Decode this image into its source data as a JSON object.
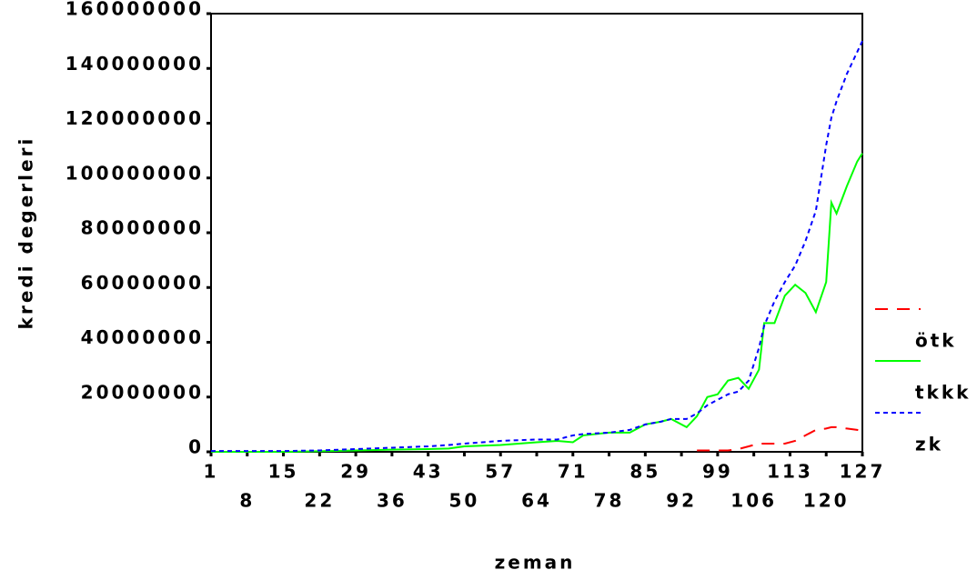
{
  "chart_data": {
    "type": "line",
    "x_label": "zeman",
    "y_label": "kredi degerleri",
    "x": [
      1,
      8,
      15,
      22,
      29,
      36,
      43,
      47,
      50,
      57,
      64,
      68,
      71,
      73,
      78,
      82,
      85,
      88,
      90,
      93,
      95,
      97,
      99,
      101,
      103,
      105,
      107,
      108,
      110,
      112,
      114,
      116,
      118,
      120,
      121,
      122,
      124,
      126,
      127
    ],
    "series": [
      {
        "name": "ötk",
        "color": "#ff0000",
        "dash": "14,10",
        "values": [
          null,
          null,
          null,
          null,
          null,
          null,
          null,
          null,
          null,
          null,
          null,
          null,
          null,
          null,
          null,
          null,
          null,
          null,
          null,
          null,
          500000,
          500000,
          500000,
          500000,
          1000000,
          2000000,
          3000000,
          3000000,
          3000000,
          3000000,
          4000000,
          6000000,
          8000000,
          8500000,
          9000000,
          9000000,
          8500000,
          8000000,
          7500000
        ]
      },
      {
        "name": "tkkk",
        "color": "#00ff00",
        "dash": "none",
        "values": [
          0,
          0,
          0,
          200000,
          500000,
          800000,
          1000000,
          1200000,
          2000000,
          2500000,
          3500000,
          4000000,
          3500000,
          6000000,
          7000000,
          7000000,
          10000000,
          11000000,
          12000000,
          9000000,
          13000000,
          20000000,
          21000000,
          26000000,
          27000000,
          23000000,
          30000000,
          47000000,
          47000000,
          57000000,
          61000000,
          58000000,
          51000000,
          62000000,
          91000000,
          87000000,
          97000000,
          106000000,
          109000000
        ]
      },
      {
        "name": "zk",
        "color": "#0000ff",
        "dash": "5,4",
        "values": [
          300000,
          300000,
          300000,
          500000,
          1000000,
          1500000,
          2000000,
          2500000,
          3000000,
          4000000,
          4500000,
          4500000,
          6000000,
          6500000,
          7000000,
          8000000,
          10000000,
          11000000,
          12000000,
          12000000,
          14000000,
          17000000,
          19000000,
          21000000,
          22000000,
          26000000,
          38000000,
          46000000,
          55000000,
          62000000,
          68000000,
          77000000,
          88000000,
          112000000,
          122000000,
          128000000,
          138000000,
          146000000,
          150000000
        ]
      }
    ],
    "xlim": [
      1,
      127
    ],
    "xticks": [
      1,
      8,
      15,
      22,
      29,
      36,
      43,
      50,
      57,
      64,
      71,
      78,
      85,
      92,
      99,
      106,
      113,
      120,
      127
    ],
    "ylim": [
      0,
      160000000
    ],
    "yticks": [
      0,
      20000000,
      40000000,
      60000000,
      80000000,
      100000000,
      120000000,
      140000000,
      160000000
    ]
  }
}
